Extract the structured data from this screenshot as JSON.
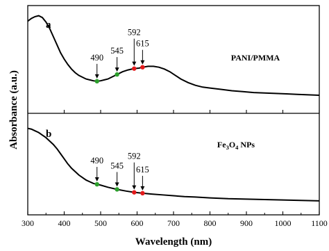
{
  "chart_data": {
    "type": "line",
    "xlabel": "Wavelength (nm)",
    "ylabel": "Absorbance (a.u.)",
    "xlim": [
      300,
      1100
    ],
    "x_ticks": [
      "300",
      "400",
      "500",
      "600",
      "700",
      "800",
      "900",
      "1000",
      "1100"
    ],
    "grid": false,
    "line_color": "#000000",
    "marker_colors": {
      "green": "#2ca02c",
      "red": "#e41a1c"
    },
    "panels": [
      {
        "id": "a",
        "panel_label": "a",
        "sample_label": "PANI/PMMA",
        "ylim": [
          0,
          1
        ],
        "series": [
          {
            "x": [
              300,
              310,
              320,
              330,
              340,
              350,
              360,
              370,
              380,
              390,
              400,
              410,
              420,
              430,
              440,
              450,
              460,
              470,
              480,
              490,
              500,
              510,
              520,
              530,
              545,
              560,
              575,
              592,
              605,
              615,
              630,
              645,
              660,
              675,
              690,
              705,
              720,
              740,
              760,
              780,
              800,
              830,
              860,
              890,
              920,
              950,
              980,
              1010,
              1040,
              1070,
              1100
            ],
            "y": [
              0.92,
              0.95,
              0.97,
              0.98,
              0.96,
              0.91,
              0.84,
              0.75,
              0.66,
              0.57,
              0.5,
              0.44,
              0.39,
              0.35,
              0.32,
              0.3,
              0.28,
              0.27,
              0.26,
              0.255,
              0.26,
              0.27,
              0.28,
              0.3,
              0.33,
              0.36,
              0.38,
              0.395,
              0.4,
              0.41,
              0.42,
              0.42,
              0.41,
              0.39,
              0.36,
              0.32,
              0.28,
              0.24,
              0.21,
              0.19,
              0.18,
              0.165,
              0.15,
              0.14,
              0.13,
              0.125,
              0.12,
              0.115,
              0.11,
              0.105,
              0.1
            ]
          }
        ],
        "markers": [
          {
            "x": 490,
            "label": "490",
            "color": "green"
          },
          {
            "x": 545,
            "label": "545",
            "color": "green"
          },
          {
            "x": 592,
            "label": "592",
            "color": "red"
          },
          {
            "x": 615,
            "label": "615",
            "color": "red"
          }
        ]
      },
      {
        "id": "b",
        "panel_label": "b",
        "sample_label_main": "Fe",
        "sample_label_sub1": "3",
        "sample_label_mid": "O",
        "sample_label_sub2": "4",
        "sample_label_tail": " NPs",
        "ylim": [
          0,
          1
        ],
        "series": [
          {
            "x": [
              300,
              310,
              320,
              330,
              340,
              350,
              360,
              370,
              380,
              390,
              400,
              410,
              420,
              430,
              440,
              450,
              460,
              470,
              480,
              490,
              500,
              520,
              545,
              570,
              592,
              615,
              640,
              670,
              700,
              730,
              760,
              800,
              850,
              900,
              950,
              1000,
              1050,
              1100
            ],
            "y": [
              0.93,
              0.92,
              0.9,
              0.88,
              0.85,
              0.82,
              0.78,
              0.74,
              0.69,
              0.63,
              0.57,
              0.51,
              0.46,
              0.42,
              0.38,
              0.35,
              0.32,
              0.3,
              0.28,
              0.27,
              0.26,
              0.235,
              0.21,
              0.19,
              0.175,
              0.165,
              0.155,
              0.145,
              0.135,
              0.125,
              0.12,
              0.11,
              0.1,
              0.095,
              0.09,
              0.085,
              0.08,
              0.075
            ]
          }
        ],
        "markers": [
          {
            "x": 490,
            "label": "490",
            "color": "green"
          },
          {
            "x": 545,
            "label": "545",
            "color": "green"
          },
          {
            "x": 592,
            "label": "592",
            "color": "red"
          },
          {
            "x": 615,
            "label": "615",
            "color": "red"
          }
        ]
      }
    ]
  }
}
